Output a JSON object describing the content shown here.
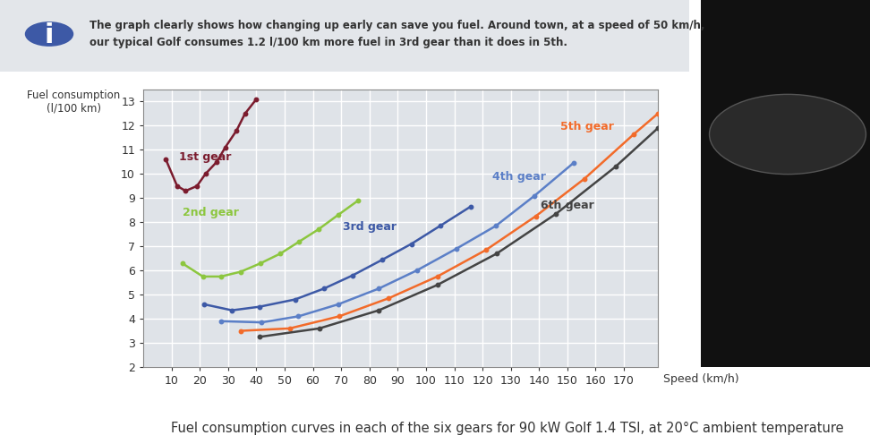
{
  "chart_data": {
    "type": "line",
    "icon": "i",
    "subtitle": "The graph clearly shows how changing up early can save you fuel. Around town, at a speed of 50 km/h,\nour typical Golf consumes 1.2 l/100 km more fuel in 3rd gear than it does in 5th.",
    "caption": "Fuel consumption curves in each of the six gears for 90 kW Golf 1.4 TSI, at 20°C ambient temperature",
    "x_label": "Speed (km/h)",
    "y_label": "Fuel consumption\n(l/100 km)",
    "xlim": [
      0,
      182
    ],
    "xticks": [
      10,
      20,
      30,
      40,
      50,
      60,
      70,
      80,
      90,
      100,
      110,
      120,
      130,
      140,
      150,
      160,
      170
    ],
    "ylim": [
      2,
      13.5
    ],
    "yticks": [
      2,
      3,
      4,
      5,
      6,
      7,
      8,
      9,
      10,
      11,
      12,
      13
    ],
    "grid": true,
    "marker": "o",
    "line_style": "solid",
    "series": [
      {
        "name": "1st gear",
        "color": "#7b1c2e",
        "x": [
          8,
          12,
          15,
          19,
          22,
          26,
          29,
          33,
          36,
          40
        ],
        "values": [
          10.6,
          9.5,
          9.3,
          9.5,
          10.0,
          10.5,
          11.1,
          11.8,
          12.5,
          13.1
        ]
      },
      {
        "name": "2nd gear",
        "color": "#8cc63f",
        "x": [
          13.8,
          21.1,
          27.5,
          34.5,
          41.5,
          48.5,
          55.2,
          61.9,
          68.9,
          76
        ],
        "values": [
          6.3,
          5.75,
          5.75,
          5.95,
          6.3,
          6.7,
          7.2,
          7.7,
          8.3,
          8.9
        ]
      },
      {
        "name": "3rd gear",
        "color": "#3d59a6",
        "x": [
          21.5,
          31.4,
          41.2,
          53.7,
          63.9,
          74.1,
          84.6,
          94.8,
          105,
          115.8
        ],
        "values": [
          4.6,
          4.35,
          4.5,
          4.8,
          5.25,
          5.8,
          6.45,
          7.1,
          7.85,
          8.65
        ]
      },
      {
        "name": "4th gear",
        "color": "#5b7fc7",
        "x": [
          27.5,
          41.9,
          54.9,
          69,
          83.3,
          96.7,
          110.7,
          124.7,
          138.4,
          152.1
        ],
        "values": [
          3.9,
          3.85,
          4.1,
          4.6,
          5.25,
          6.0,
          6.9,
          7.85,
          9.1,
          10.45
        ]
      },
      {
        "name": "5th gear",
        "color": "#f26b2a",
        "x": [
          34.5,
          51.8,
          69.3,
          86.8,
          104,
          121.2,
          138.8,
          156,
          173.5,
          182
        ],
        "values": [
          3.5,
          3.6,
          4.1,
          4.85,
          5.75,
          6.85,
          8.25,
          9.8,
          11.65,
          12.5
        ]
      },
      {
        "name": "6th gear",
        "color": "#444444",
        "x": [
          41.2,
          62.3,
          83.3,
          104,
          125,
          146,
          167,
          182
        ],
        "values": [
          3.25,
          3.6,
          4.35,
          5.4,
          6.7,
          8.35,
          10.3,
          11.9
        ]
      }
    ]
  }
}
